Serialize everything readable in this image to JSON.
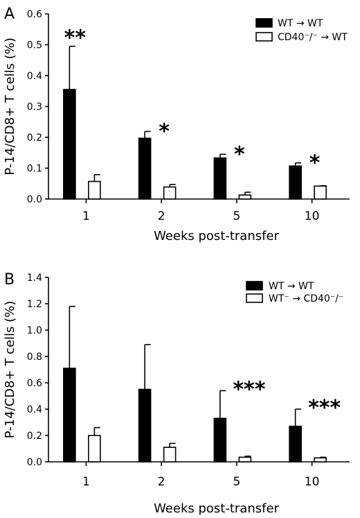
{
  "chart_data": [
    {
      "type": "bar",
      "panel_label": "A",
      "categories": [
        "1",
        "2",
        "5",
        "10"
      ],
      "xlabel": "Weeks post-transfer",
      "ylabel": "P-14/CD8+ T cells (%)",
      "ylim": [
        0,
        0.6
      ],
      "yticks": [
        "0.0",
        "0.1",
        "0.2",
        "0.3",
        "0.4",
        "0.5",
        "0.6"
      ],
      "legend_position": "top-right",
      "series": [
        {
          "name": "WT → WT",
          "fill": "#000000",
          "values": [
            0.355,
            0.197,
            0.133,
            0.107
          ],
          "errors": [
            0.14,
            0.022,
            0.012,
            0.01
          ]
        },
        {
          "name": "CD40⁻/⁻ → WT",
          "fill": "#ffffff",
          "values": [
            0.057,
            0.039,
            0.013,
            0.042
          ],
          "errors": [
            0.022,
            0.008,
            0.009,
            0.001
          ]
        }
      ],
      "annotations": [
        "**",
        "*",
        "*",
        "*"
      ]
    },
    {
      "type": "bar",
      "panel_label": "B",
      "categories": [
        "1",
        "2",
        "5",
        "10"
      ],
      "xlabel": "Weeks post-transfer",
      "ylabel": "P-14/CD8+ T cells (%)",
      "ylim": [
        0,
        1.4
      ],
      "yticks": [
        "0.0",
        "0.2",
        "0.4",
        "0.6",
        "0.8",
        "1.0",
        "1.2",
        "1.4"
      ],
      "legend_position": "top-right",
      "series": [
        {
          "name": "WT → WT",
          "fill": "#000000",
          "values": [
            0.71,
            0.55,
            0.33,
            0.27
          ],
          "errors": [
            0.47,
            0.34,
            0.21,
            0.13
          ]
        },
        {
          "name": "WT⁻ → CD40⁻/⁻",
          "fill": "#ffffff",
          "values": [
            0.2,
            0.11,
            0.035,
            0.03
          ],
          "errors": [
            0.06,
            0.03,
            0.008,
            0.005
          ]
        }
      ],
      "annotations": [
        "",
        "",
        "***",
        "***"
      ]
    }
  ]
}
